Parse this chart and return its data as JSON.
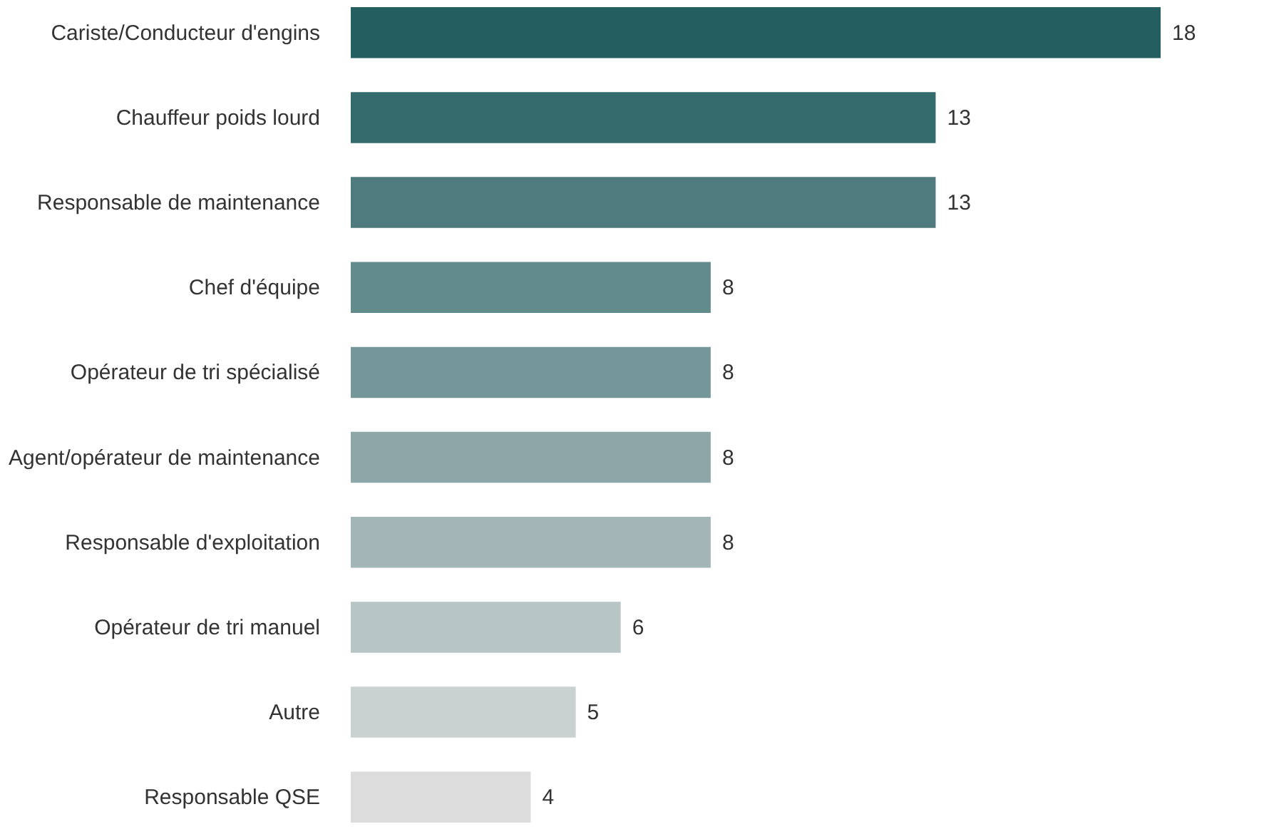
{
  "chart_data": {
    "type": "bar",
    "orientation": "horizontal",
    "data_labels": true,
    "categories": [
      "Cariste/Conducteur d'engins",
      "Chauffeur poids lourd",
      "Responsable de maintenance",
      "Chef d'équipe",
      "Opérateur de tri spécialisé",
      "Agent/opérateur de maintenance",
      "Responsable d'exploitation",
      "Opérateur de tri manuel",
      "Autre",
      "Responsable QSE"
    ],
    "values": [
      18,
      13,
      13,
      8,
      8,
      8,
      8,
      6,
      5,
      4
    ],
    "colors": [
      "#255e60",
      "#336a6c",
      "#4f7a7e",
      "#628b8b",
      "#76979a",
      "#8da6a7",
      "#a3b5b7",
      "#b8c5c5",
      "#cad2d1",
      "#dcdcdc"
    ]
  }
}
